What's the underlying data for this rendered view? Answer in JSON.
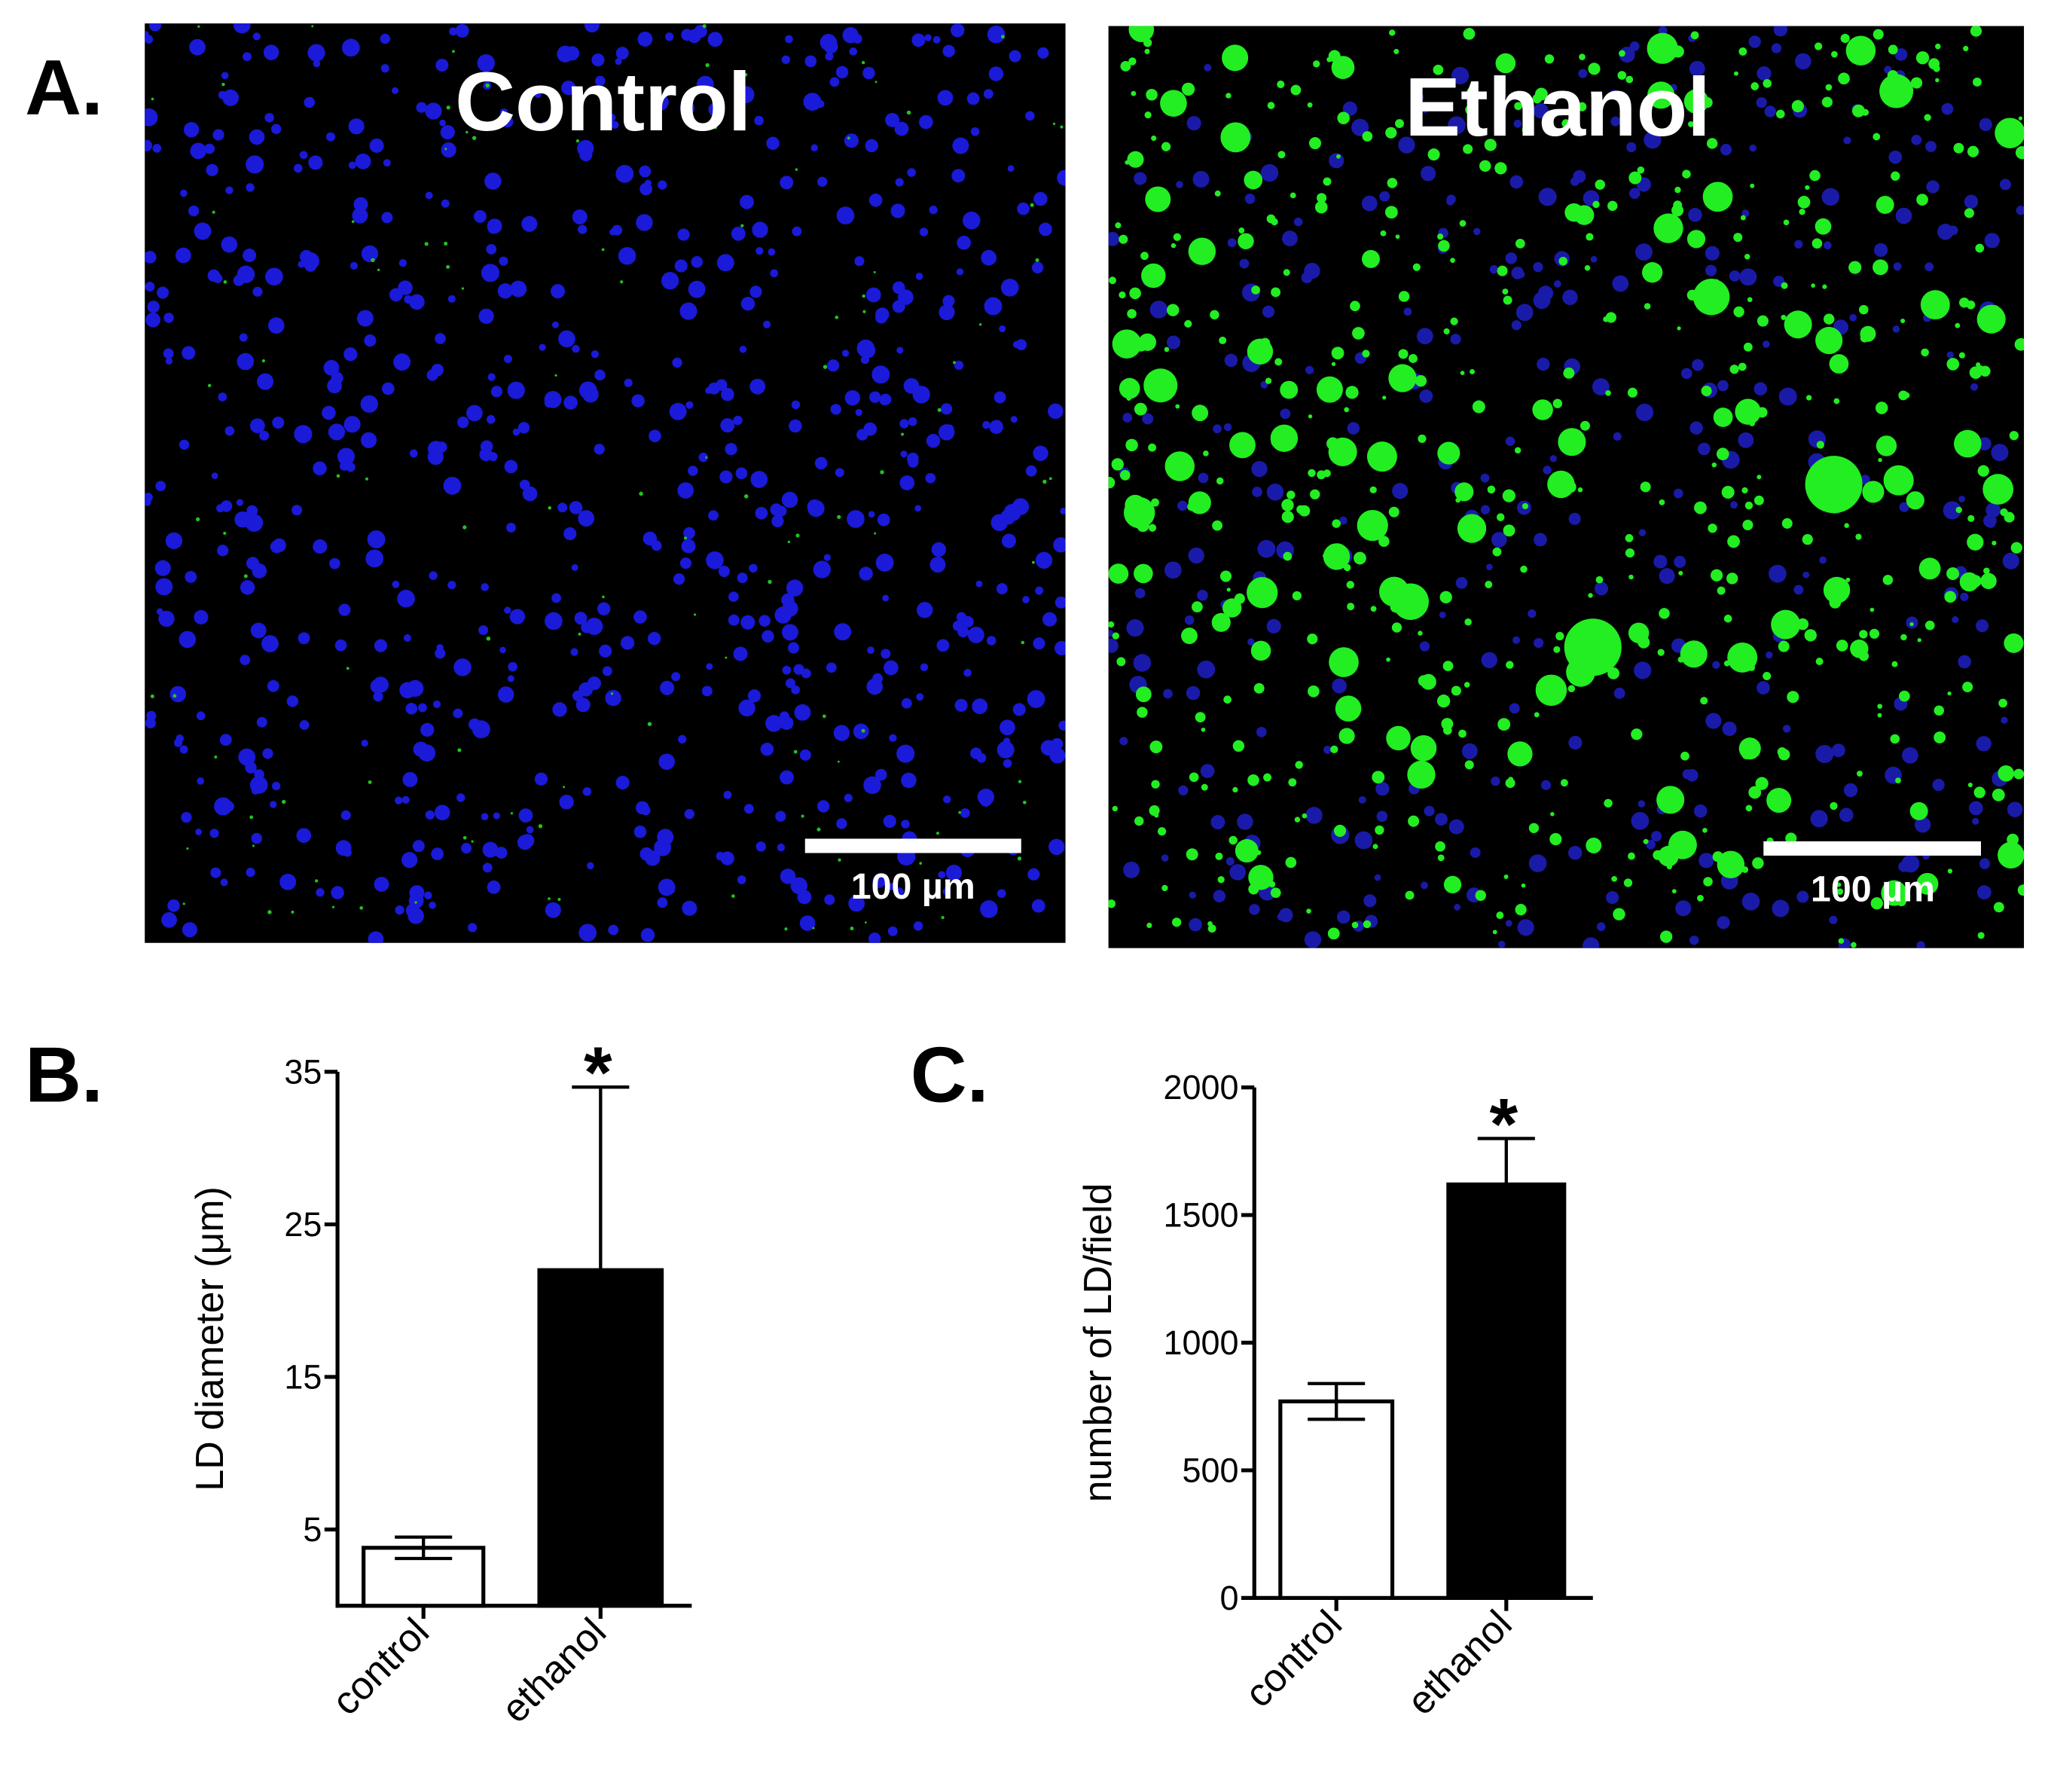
{
  "panel_labels": [
    "A.",
    "B.",
    "C."
  ],
  "images": [
    {
      "title": "Control",
      "scale_bar": "100 µm"
    },
    {
      "title": "Ethanol",
      "scale_bar": "100 µm"
    }
  ],
  "chart_data": [
    {
      "type": "bar",
      "ylabel": "LD diameter (μm)",
      "categories": [
        "control",
        "ethanol"
      ],
      "values": [
        3.8,
        22
      ],
      "errors": [
        0.7,
        12
      ],
      "colors": [
        "#ffffff",
        "#000000"
      ],
      "significance": [
        null,
        "*"
      ],
      "ylim": [
        0,
        35
      ],
      "yticks": [
        5,
        15,
        25,
        35
      ]
    },
    {
      "type": "bar",
      "ylabel": "number of LD/field",
      "categories": [
        "control",
        "ethanol"
      ],
      "values": [
        770,
        1620
      ],
      "errors": [
        70,
        180
      ],
      "colors": [
        "#ffffff",
        "#000000"
      ],
      "significance": [
        null,
        "*"
      ],
      "ylim": [
        0,
        2000
      ],
      "yticks": [
        0,
        500,
        1000,
        1500,
        2000
      ]
    }
  ]
}
